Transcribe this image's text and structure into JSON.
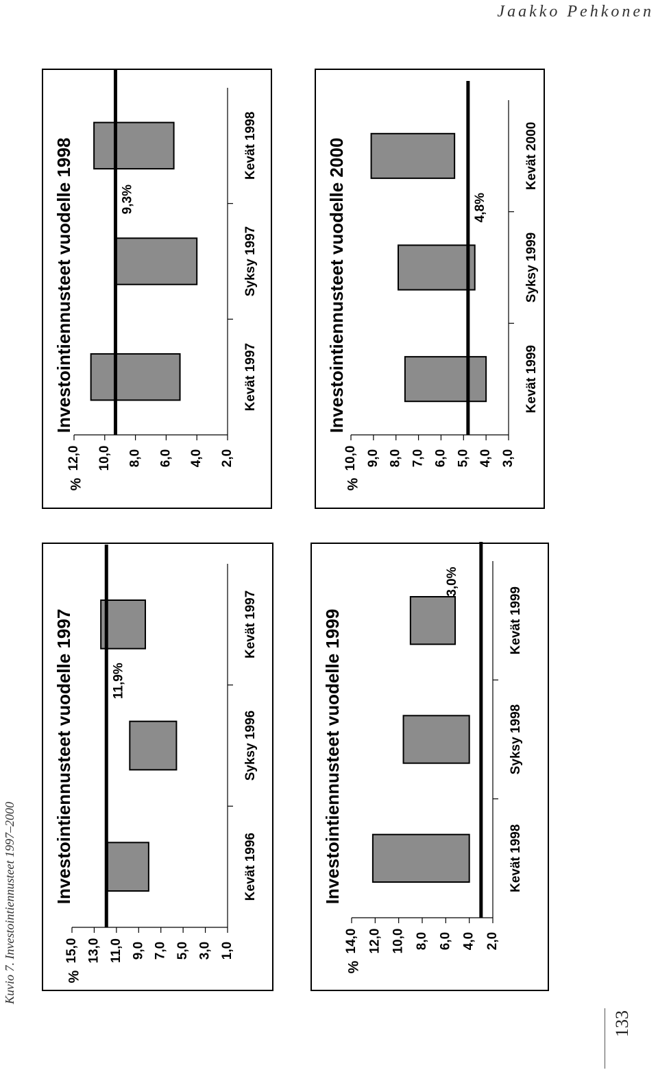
{
  "header": {
    "author": "Jaakko Pehkonen"
  },
  "caption": "Kuvio 7. Investointiennusteet 1997–2000",
  "page_number": "133",
  "colors": {
    "bar_fill": "#8c8c8c",
    "bar_stroke": "#000000",
    "line": "#000000",
    "frame": "#000000"
  },
  "chart_data": [
    {
      "type": "bar",
      "title": "Investointiennusteet vuodelle 1997",
      "ylabel": "%",
      "y_ticks": [
        "1,0",
        "3,0",
        "5,0",
        "7,0",
        "9,0",
        "11,0",
        "13,0",
        "15,0"
      ],
      "ylim": [
        1,
        15
      ],
      "categories": [
        "Kevät 1996",
        "Syksy 1996",
        "Kevät 1997"
      ],
      "bar_ranges": [
        [
          8.1,
          11.8
        ],
        [
          5.6,
          9.8
        ],
        [
          8.4,
          12.4
        ]
      ],
      "reference_value": 11.9,
      "reference_label": "11,9%",
      "grid": false
    },
    {
      "type": "bar",
      "title": "Investointiennusteet vuodelle 1998",
      "ylabel": "%",
      "y_ticks": [
        "2,0",
        "4,0",
        "6,0",
        "8,0",
        "10,0",
        "12,0"
      ],
      "ylim": [
        2,
        12
      ],
      "categories": [
        "Kevät 1997",
        "Syksy 1997",
        "Kevät 1998"
      ],
      "bar_ranges": [
        [
          5.1,
          10.9
        ],
        [
          4.0,
          9.3
        ],
        [
          5.5,
          10.7
        ]
      ],
      "reference_value": 9.3,
      "reference_label": "9,3%",
      "grid": false
    },
    {
      "type": "bar",
      "title": "Investointiennusteet vuodelle 1999",
      "ylabel": "%",
      "y_ticks": [
        "2,0",
        "4,0",
        "6,0",
        "8,0",
        "10,0",
        "12,0",
        "14,0"
      ],
      "ylim": [
        2,
        14
      ],
      "categories": [
        "Kevät 1998",
        "Syksy 1998",
        "Kevät 1999"
      ],
      "bar_ranges": [
        [
          4.0,
          12.2
        ],
        [
          4.0,
          9.6
        ],
        [
          5.2,
          9.0
        ]
      ],
      "reference_value": 3.0,
      "reference_label": "3,0%",
      "grid": false
    },
    {
      "type": "bar",
      "title": "Investointiennusteet vuodelle 2000",
      "ylabel": "%",
      "y_ticks": [
        "3,0",
        "4,0",
        "5,0",
        "6,0",
        "7,0",
        "8,0",
        "9,0",
        "10,0"
      ],
      "ylim": [
        3,
        10
      ],
      "categories": [
        "Kevät 1999",
        "Syksy 1999",
        "Kevät 2000"
      ],
      "bar_ranges": [
        [
          4.0,
          7.6
        ],
        [
          4.5,
          7.9
        ],
        [
          5.4,
          9.1
        ]
      ],
      "reference_value": 4.8,
      "reference_label": "4,8%",
      "grid": false
    }
  ]
}
